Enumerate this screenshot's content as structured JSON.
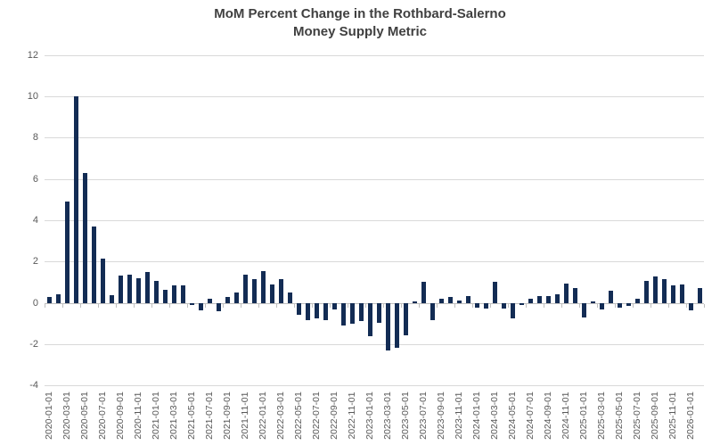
{
  "chart": {
    "title_line1": "MoM Percent Change in the Rothbard-Salerno",
    "title_line2": "Money Supply Metric"
  },
  "chart_data": {
    "type": "bar",
    "title": "MoM Percent Change in the Rothbard-Salerno Money Supply Metric",
    "xlabel": "",
    "ylabel": "",
    "ylim": [
      -4,
      12
    ],
    "y_ticks": [
      12,
      10,
      8,
      6,
      4,
      2,
      0,
      -2,
      -4
    ],
    "grid": true,
    "legend_position": "none",
    "x_label_every_n": 2,
    "categories": [
      "2020-01-01",
      "2020-02-01",
      "2020-03-01",
      "2020-04-01",
      "2020-05-01",
      "2020-06-01",
      "2020-07-01",
      "2020-08-01",
      "2020-09-01",
      "2020-10-01",
      "2020-11-01",
      "2020-12-01",
      "2021-01-01",
      "2021-02-01",
      "2021-03-01",
      "2021-04-01",
      "2021-05-01",
      "2021-06-01",
      "2021-07-01",
      "2021-08-01",
      "2021-09-01",
      "2021-10-01",
      "2021-11-01",
      "2021-12-01",
      "2022-01-01",
      "2022-02-01",
      "2022-03-01",
      "2022-04-01",
      "2022-05-01",
      "2022-06-01",
      "2022-07-01",
      "2022-08-01",
      "2022-09-01",
      "2022-10-01",
      "2022-11-01",
      "2022-12-01",
      "2023-01-01",
      "2023-02-01",
      "2023-03-01",
      "2023-04-01",
      "2023-05-01",
      "2023-06-01",
      "2023-07-01",
      "2023-08-01",
      "2023-09-01",
      "2023-10-01",
      "2023-11-01",
      "2023-12-01",
      "2024-01-01",
      "2024-02-01",
      "2024-03-01",
      "2024-04-01",
      "2024-05-01",
      "2024-06-01",
      "2024-07-01",
      "2024-08-01",
      "2024-09-01",
      "2024-10-01",
      "2024-11-01",
      "2024-12-01",
      "2025-01-01",
      "2025-02-01",
      "2025-03-01",
      "2025-04-01",
      "2025-05-01",
      "2025-06-01",
      "2025-07-01",
      "2025-08-01",
      "2025-09-01",
      "2025-10-01",
      "2025-11-01",
      "2025-12-01",
      "2026-01-01",
      "2026-02-01"
    ],
    "values": [
      0.3,
      0.45,
      4.9,
      10.0,
      6.3,
      3.7,
      2.15,
      0.4,
      1.35,
      1.4,
      1.2,
      1.5,
      1.1,
      0.65,
      0.85,
      0.85,
      -0.1,
      -0.35,
      0.2,
      -0.4,
      0.3,
      0.5,
      1.4,
      1.15,
      1.55,
      0.9,
      1.15,
      0.5,
      -0.55,
      -0.8,
      -0.75,
      -0.8,
      -0.3,
      -1.1,
      -1.0,
      -0.85,
      -1.6,
      -0.95,
      -2.3,
      -2.15,
      -1.55,
      0.1,
      1.05,
      -0.8,
      0.2,
      0.3,
      0.15,
      0.35,
      -0.2,
      -0.25,
      1.05,
      -0.25,
      -0.75,
      -0.1,
      0.2,
      0.35,
      0.35,
      0.45,
      0.95,
      0.75,
      -0.7,
      0.1,
      -0.3,
      0.6,
      -0.2,
      -0.15,
      0.2,
      1.1,
      1.3,
      1.15,
      0.85,
      0.9,
      -0.35,
      0.75
    ],
    "colors": {
      "bar": "#132c54",
      "gridline": "#d9d9d9",
      "axis": "#bfbfbf",
      "tick_label": "#595959",
      "title": "#404040",
      "background": "#ffffff"
    }
  }
}
